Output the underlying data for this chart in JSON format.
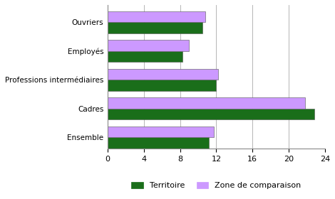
{
  "categories": [
    "Ouvriers",
    "Employés",
    "Professions intermédiaires",
    "Cadres",
    "Ensemble"
  ],
  "territoire": [
    10.5,
    8.3,
    12.0,
    22.8,
    11.2
  ],
  "zone": [
    10.8,
    9.0,
    12.2,
    21.8,
    11.7
  ],
  "color_territoire": "#1a6e1a",
  "color_zone": "#cc99ff",
  "xlim": [
    0,
    24
  ],
  "xticks": [
    0,
    4,
    8,
    12,
    16,
    20,
    24
  ],
  "legend_territoire": "Territoire",
  "legend_zone": "Zone de comparaison",
  "bar_height": 0.38,
  "background_color": "#ffffff",
  "grid_color": "#aaaaaa",
  "edge_color": "#555555"
}
